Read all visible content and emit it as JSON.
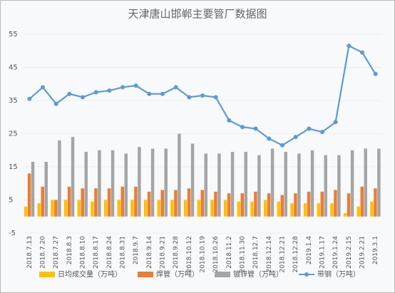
{
  "chart_data": {
    "type": "bar_line",
    "title": "天津唐山邯郸主要管厂数据图",
    "categories": [
      "2018.7.13",
      "2018.7.20",
      "2018.7.27",
      "2018.8.3",
      "2018.8.10",
      "2018.8.17",
      "2018.8.24",
      "2018.8.31",
      "2018.9.7",
      "2018.9.14",
      "2018.9.21",
      "2018.9.28",
      "2018.10.12",
      "2018.10.19",
      "2018.10.26",
      "2018.11.2",
      "2018.11.30",
      "2018.12.7",
      "2018.12.14",
      "2018.12.21",
      "2018.12.28",
      "2019.1.4",
      "2019.1.17",
      "2019.1.24",
      "2019.2.15",
      "2019.2.21",
      "2019.3.1"
    ],
    "series": [
      {
        "name": "日均成交量（万吨）",
        "kind": "bar",
        "color": "#ffc000",
        "values": [
          3,
          4,
          5,
          5,
          5,
          4.5,
          5,
          5,
          5,
          5,
          5,
          5,
          5,
          5,
          5,
          5,
          4.5,
          4.5,
          5,
          4.5,
          4,
          4,
          4,
          4,
          1,
          3,
          4.5
        ]
      },
      {
        "name": "焊管（万吨）",
        "kind": "bar",
        "color": "#ed7d31",
        "values": [
          13,
          9,
          5,
          9,
          8.5,
          8.5,
          8.5,
          9,
          9,
          7.5,
          8,
          8,
          8.5,
          8,
          7.5,
          7,
          7,
          7.5,
          7,
          6.5,
          7,
          7.5,
          7.5,
          8,
          7,
          9,
          8.5
        ]
      },
      {
        "name": "镀锌管（万吨）",
        "kind": "bar",
        "color": "#a5a5a5",
        "values": [
          16.5,
          16.5,
          23,
          24,
          19.5,
          20,
          20,
          19,
          21,
          20.5,
          20.5,
          25,
          22,
          19,
          19,
          19.5,
          19.5,
          18.5,
          20.5,
          19.5,
          19,
          20,
          18.5,
          18.5,
          20,
          20.5,
          20.5
        ]
      },
      {
        "name": "带钢（万吨）",
        "kind": "line",
        "color": "#5b9bd5",
        "values": [
          35.5,
          39,
          34,
          37,
          36,
          37.5,
          38,
          39,
          39.5,
          37,
          37,
          39,
          36,
          36.5,
          36,
          29,
          27,
          26.5,
          23.5,
          21.5,
          24,
          26.5,
          25.5,
          28.5,
          51.5,
          49.5,
          43
        ]
      }
    ],
    "ylim": [
      -5,
      55
    ],
    "yticks": [
      -5,
      5,
      15,
      25,
      35,
      45,
      55
    ],
    "legend": "bottom"
  }
}
